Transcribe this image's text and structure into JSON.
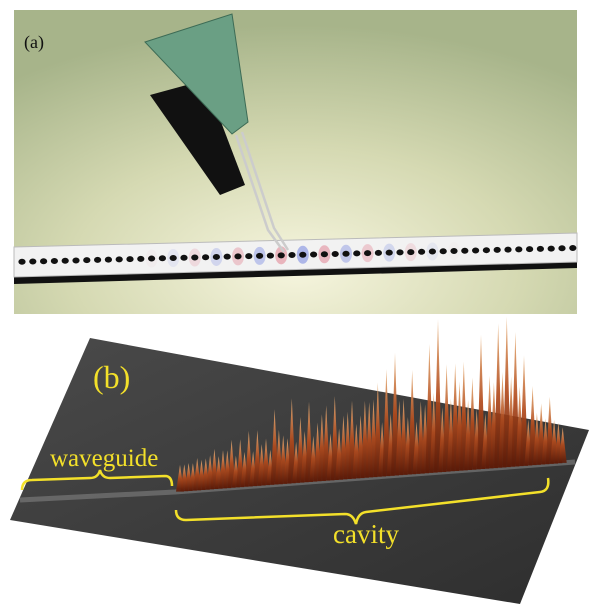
{
  "panels": [
    {
      "label": "(a)"
    },
    {
      "label": "(b)",
      "annotations": [
        "waveguide",
        "cavity"
      ]
    }
  ]
}
